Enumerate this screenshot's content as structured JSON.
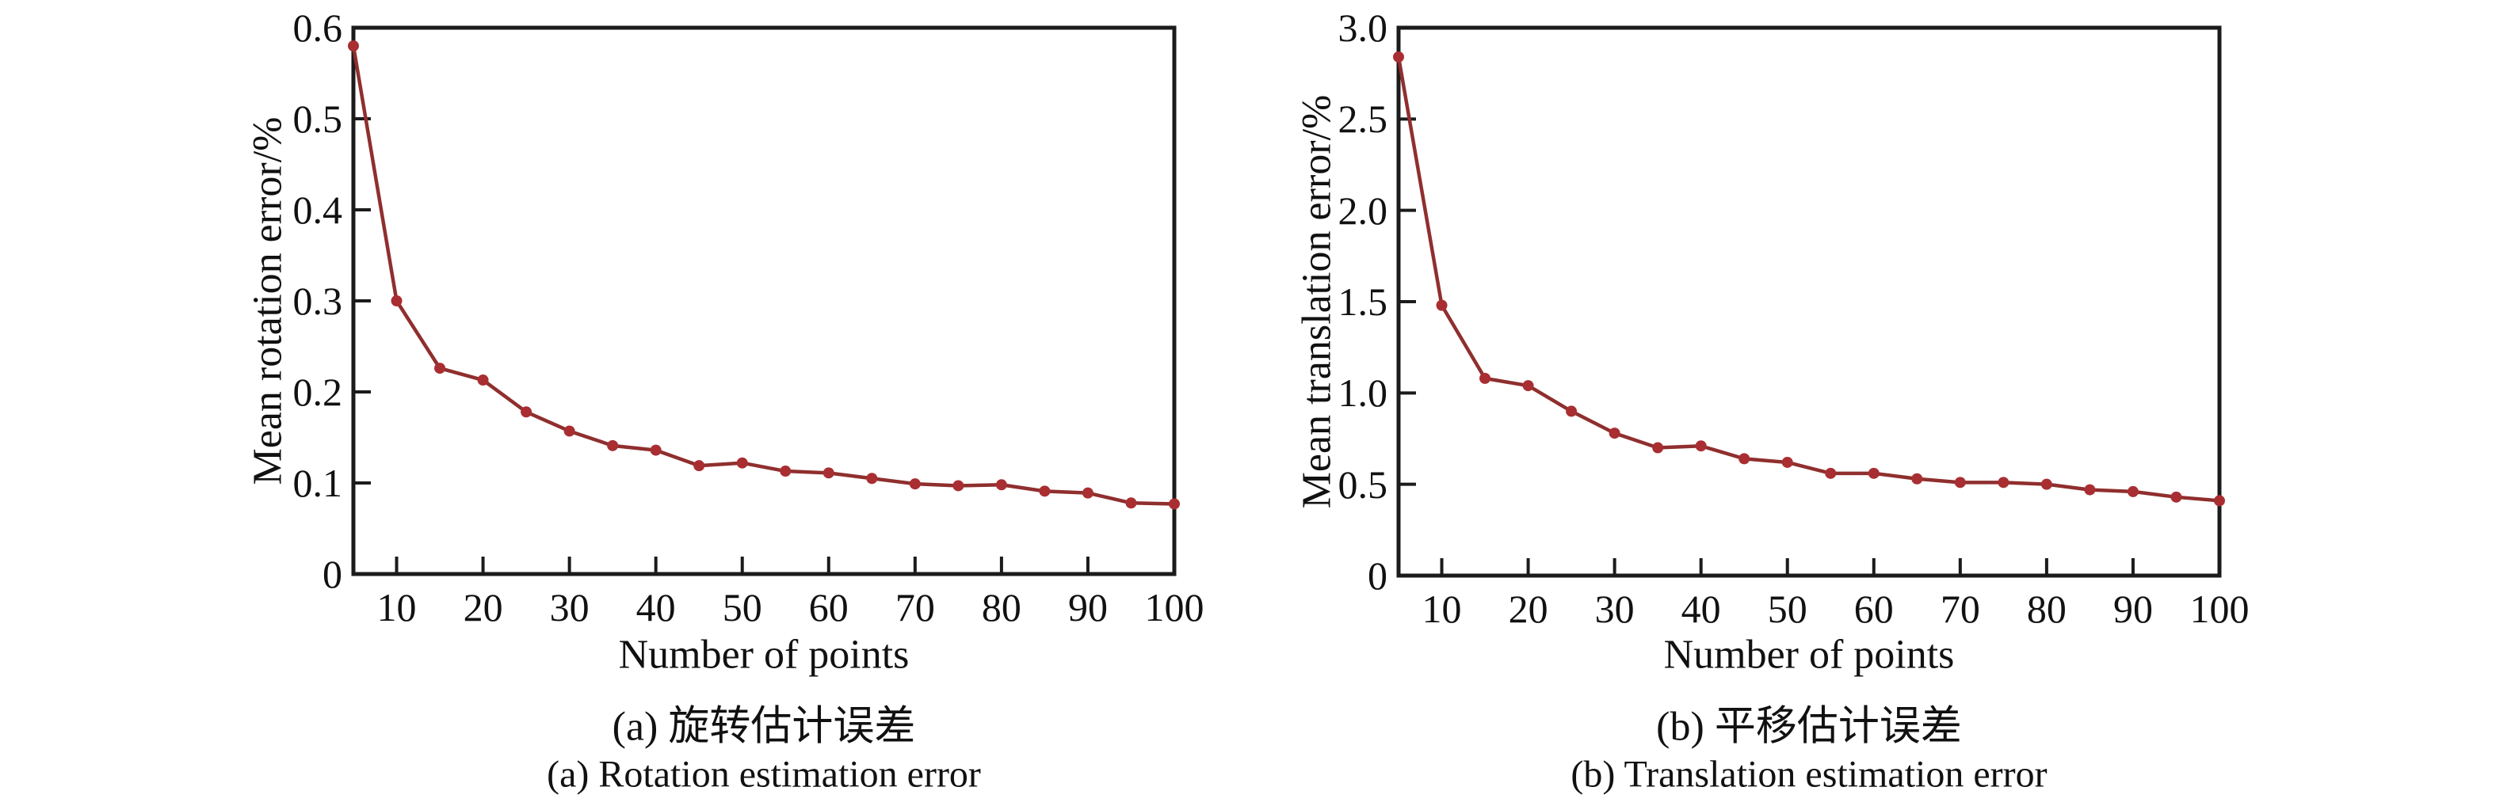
{
  "page": {
    "background": "#ffffff",
    "axis_color": "#1b1b1b",
    "text_color": "#111111"
  },
  "chart_data": [
    {
      "type": "line",
      "id": "rotation-error",
      "ylabel": "Mean rotation error/%",
      "xlabel": "Number of points",
      "caption_zh": "(a) 旋转估计误差",
      "caption_en": "(a) Rotation estimation error",
      "x": [
        5,
        10,
        15,
        20,
        25,
        30,
        35,
        40,
        45,
        50,
        55,
        60,
        65,
        70,
        75,
        80,
        85,
        90,
        95,
        100
      ],
      "series": [
        {
          "name": "mean rotation error",
          "values": [
            0.58,
            0.3,
            0.226,
            0.213,
            0.178,
            0.157,
            0.141,
            0.136,
            0.119,
            0.122,
            0.113,
            0.111,
            0.105,
            0.099,
            0.097,
            0.098,
            0.091,
            0.089,
            0.078,
            0.077
          ]
        }
      ],
      "xlim": [
        5,
        100
      ],
      "ylim": [
        0,
        0.6
      ],
      "xticks": [
        10,
        20,
        30,
        40,
        50,
        60,
        70,
        80,
        90,
        100
      ],
      "yticks": [
        0,
        0.1,
        0.2,
        0.3,
        0.4,
        0.5,
        0.6
      ],
      "ytick_labels": [
        "0",
        "0.1",
        "0.2",
        "0.3",
        "0.4",
        "0.5",
        "0.6"
      ],
      "grid": false,
      "legend": "none",
      "line_color": "#8f2f2e",
      "marker_color": "#a92e32",
      "marker": "circle"
    },
    {
      "type": "line",
      "id": "translation-error",
      "ylabel": "Mean translation error/%",
      "xlabel": "Number of points",
      "caption_zh": "(b) 平移估计误差",
      "caption_en": "(b) Translation estimation error",
      "x": [
        5,
        10,
        15,
        20,
        25,
        30,
        35,
        40,
        45,
        50,
        55,
        60,
        65,
        70,
        75,
        80,
        85,
        90,
        95,
        100
      ],
      "series": [
        {
          "name": "mean translation error",
          "values": [
            2.84,
            1.48,
            1.08,
            1.04,
            0.9,
            0.78,
            0.7,
            0.71,
            0.64,
            0.62,
            0.56,
            0.56,
            0.53,
            0.51,
            0.51,
            0.5,
            0.47,
            0.46,
            0.43,
            0.41
          ]
        }
      ],
      "xlim": [
        5,
        100
      ],
      "ylim": [
        0,
        3.0
      ],
      "xticks": [
        10,
        20,
        30,
        40,
        50,
        60,
        70,
        80,
        90,
        100
      ],
      "yticks": [
        0,
        0.5,
        1.0,
        1.5,
        2.0,
        2.5,
        3.0
      ],
      "ytick_labels": [
        "0",
        "0.5",
        "1.0",
        "1.5",
        "2.0",
        "2.5",
        "3.0"
      ],
      "grid": false,
      "legend": "none",
      "line_color": "#8f2f2e",
      "marker_color": "#a92e32",
      "marker": "circle"
    }
  ]
}
